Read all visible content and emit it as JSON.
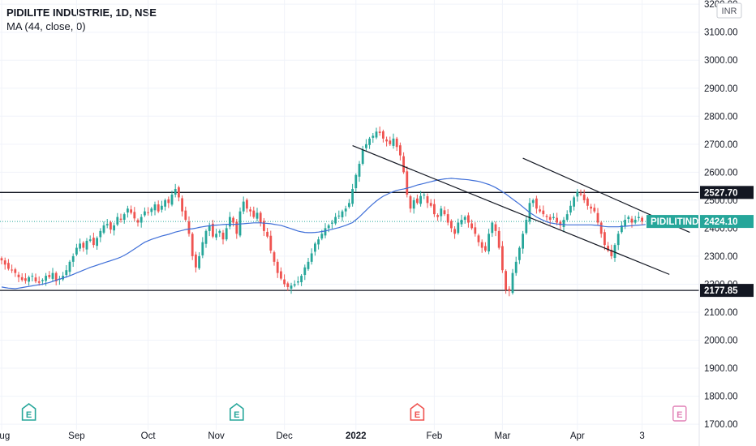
{
  "header": {
    "title": "PIDILITE INDUSTRIE, 1D, NSE",
    "indicator": "MA (44, close, 0)"
  },
  "currency_badge": "INR",
  "price_tags": {
    "resistance": "2527.70",
    "support": "2177.85",
    "symbol": "PIDILITIND",
    "last": "2424.10"
  },
  "colors": {
    "up": "#26a69a",
    "down": "#ef5350",
    "ma": "#3f6fd8",
    "level": "#131722",
    "last_price": "#26a69a"
  },
  "chart_data": {
    "type": "line",
    "title": "",
    "ylim": [
      1680,
      3215
    ],
    "y_ticks": [
      1700,
      1800,
      1900,
      2000,
      2100,
      2200,
      2300,
      2400,
      2500,
      2600,
      2700,
      2800,
      2900,
      3000,
      3100,
      3200
    ],
    "y_tick_labels": [
      "1700.00",
      "1800.00",
      "1900.00",
      "2000.00",
      "2100.00",
      "2200.00",
      "2300.00",
      "2400.00",
      "2500.00",
      "2600.00",
      "2700.00",
      "2800.00",
      "2900.00",
      "3000.00",
      "3100.00",
      "3200.00"
    ],
    "x_tick_labels": [
      {
        "label": "Aug",
        "bar": 0,
        "bold": false
      },
      {
        "label": "Sep",
        "bar": 22,
        "bold": false
      },
      {
        "label": "Oct",
        "bar": 43,
        "bold": false
      },
      {
        "label": "Nov",
        "bar": 63,
        "bold": false
      },
      {
        "label": "Dec",
        "bar": 83,
        "bold": false
      },
      {
        "label": "2022",
        "bar": 104,
        "bold": true
      },
      {
        "label": "Feb",
        "bar": 127,
        "bold": false
      },
      {
        "label": "Mar",
        "bar": 147,
        "bold": false
      },
      {
        "label": "Apr",
        "bar": 169,
        "bold": false
      },
      {
        "label": "3",
        "bar": 188,
        "bold": false
      }
    ],
    "horizontal_levels": [
      2527.7,
      2177.85
    ],
    "last_price": 2424.1,
    "trendlines": [
      {
        "from": {
          "bar": 103,
          "price": 2695
        },
        "to": {
          "bar": 196,
          "price": 2235
        }
      },
      {
        "from": {
          "bar": 153,
          "price": 2650
        },
        "to": {
          "bar": 202,
          "price": 2385
        }
      }
    ],
    "events": [
      {
        "label": "E",
        "bar": 8,
        "kind": "earnings-up"
      },
      {
        "label": "E",
        "bar": 69,
        "kind": "earnings-up"
      },
      {
        "label": "E",
        "bar": 122,
        "kind": "earnings-down"
      },
      {
        "label": "E",
        "bar": 199,
        "kind": "earnings-upcoming"
      }
    ],
    "series": [
      {
        "name": "Close",
        "values": [
          2285,
          2270,
          2255,
          2250,
          2240,
          2225,
          2215,
          2212,
          2225,
          2230,
          2210,
          2205,
          2215,
          2230,
          2225,
          2240,
          2210,
          2220,
          2230,
          2250,
          2280,
          2300,
          2330,
          2345,
          2330,
          2355,
          2360,
          2340,
          2365,
          2390,
          2410,
          2415,
          2395,
          2410,
          2440,
          2430,
          2450,
          2470,
          2455,
          2435,
          2420,
          2440,
          2460,
          2455,
          2470,
          2485,
          2460,
          2480,
          2500,
          2490,
          2520,
          2540,
          2510,
          2460,
          2430,
          2380,
          2300,
          2260,
          2300,
          2350,
          2390,
          2410,
          2370,
          2380,
          2390,
          2360,
          2400,
          2440,
          2420,
          2380,
          2460,
          2495,
          2470,
          2460,
          2440,
          2455,
          2420,
          2390,
          2370,
          2320,
          2280,
          2240,
          2220,
          2200,
          2190,
          2195,
          2200,
          2210,
          2230,
          2260,
          2280,
          2310,
          2345,
          2360,
          2380,
          2400,
          2410,
          2420,
          2440,
          2445,
          2460,
          2470,
          2490,
          2540,
          2590,
          2630,
          2680,
          2700,
          2720,
          2730,
          2745,
          2740,
          2720,
          2710,
          2700,
          2720,
          2690,
          2660,
          2600,
          2520,
          2470,
          2500,
          2490,
          2515,
          2520,
          2490,
          2480,
          2450,
          2440,
          2470,
          2450,
          2420,
          2400,
          2380,
          2420,
          2430,
          2440,
          2420,
          2400,
          2380,
          2350,
          2330,
          2320,
          2380,
          2420,
          2390,
          2330,
          2250,
          2180,
          2175,
          2240,
          2280,
          2330,
          2380,
          2430,
          2490,
          2500,
          2470,
          2460,
          2450,
          2440,
          2430,
          2440,
          2420,
          2410,
          2430,
          2450,
          2480,
          2510,
          2530,
          2520,
          2500,
          2480,
          2470,
          2460,
          2420,
          2380,
          2340,
          2320,
          2300,
          2340,
          2380,
          2410,
          2430,
          2440,
          2420,
          2430,
          2440,
          2424
        ]
      },
      {
        "name": "MA (44, close, 0)",
        "values": [
          2190,
          2188,
          2186,
          2185,
          2184,
          2186,
          2188,
          2190,
          2192,
          2194,
          2196,
          2198,
          2200,
          2203,
          2206,
          2210,
          2214,
          2218,
          2222,
          2226,
          2230,
          2235,
          2240,
          2245,
          2250,
          2255,
          2260,
          2264,
          2268,
          2272,
          2276,
          2280,
          2284,
          2288,
          2292,
          2297,
          2303,
          2310,
          2318,
          2326,
          2334,
          2342,
          2350,
          2355,
          2360,
          2364,
          2368,
          2372,
          2375,
          2378,
          2382,
          2386,
          2389,
          2392,
          2395,
          2397,
          2398,
          2400,
          2403,
          2405,
          2407,
          2409,
          2410,
          2411,
          2412,
          2413,
          2414,
          2414,
          2414,
          2414,
          2415,
          2416,
          2417,
          2418,
          2419,
          2419,
          2419,
          2418,
          2417,
          2416,
          2414,
          2412,
          2410,
          2406,
          2402,
          2398,
          2394,
          2390,
          2387,
          2385,
          2384,
          2384,
          2385,
          2386,
          2388,
          2390,
          2393,
          2396,
          2399,
          2402,
          2406,
          2410,
          2415,
          2420,
          2430,
          2440,
          2452,
          2464,
          2476,
          2487,
          2497,
          2506,
          2514,
          2520,
          2526,
          2531,
          2535,
          2538,
          2540,
          2543,
          2546,
          2550,
          2554,
          2557,
          2560,
          2563,
          2566,
          2569,
          2572,
          2574,
          2576,
          2577,
          2578,
          2577,
          2576,
          2575,
          2574,
          2573,
          2571,
          2569,
          2567,
          2564,
          2560,
          2556,
          2551,
          2545,
          2538,
          2530,
          2522,
          2513,
          2504,
          2495,
          2486,
          2476,
          2466,
          2456,
          2448,
          2440,
          2434,
          2428,
          2423,
          2419,
          2417,
          2415,
          2414,
          2413,
          2412,
          2412,
          2412,
          2412,
          2412,
          2412,
          2412,
          2412,
          2411,
          2410,
          2408,
          2406,
          2405,
          2405,
          2405,
          2405,
          2406,
          2407,
          2408,
          2409,
          2410,
          2411,
          2412,
          2413
        ]
      }
    ]
  }
}
